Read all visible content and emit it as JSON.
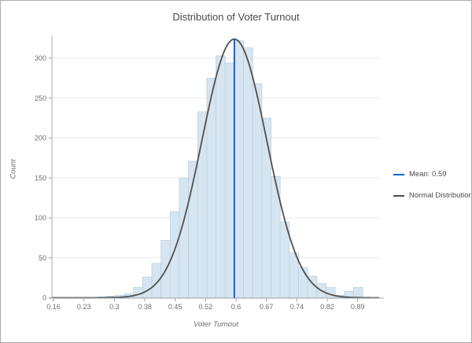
{
  "title": "Distribution of Voter Turnout",
  "chart_data": {
    "type": "bar",
    "subtype": "histogram",
    "title": "Distribution of Voter Turnout",
    "xlabel": "Voter Turnout",
    "ylabel": "Count",
    "grid": true,
    "legend_position": "right",
    "x_axis": {
      "min": 0.16,
      "max": 0.89,
      "tick_labels": [
        "0.16",
        "0.23",
        "0.3",
        "0.38",
        "0.45",
        "0.52",
        "0.6",
        "0.67",
        "0.74",
        "0.82",
        "0.89"
      ]
    },
    "y_axis": {
      "min": 0,
      "max": 328,
      "tick_values": [
        0,
        50,
        100,
        150,
        200,
        250,
        300
      ],
      "tick_labels": [
        "0",
        "50",
        "100",
        "150",
        "200",
        "250",
        "300"
      ]
    },
    "bins": {
      "start": 0.264,
      "width": 0.022
    },
    "counts": [
      1,
      2,
      3,
      5,
      13,
      26,
      43,
      72,
      108,
      150,
      171,
      233,
      275,
      303,
      294,
      322,
      313,
      268,
      225,
      152,
      95,
      56,
      38,
      27,
      18,
      13,
      3,
      8,
      13
    ],
    "normal_curve": {
      "mean": 0.594,
      "sigma": 0.078,
      "peak_count": 324,
      "color": "#4f4f4f"
    },
    "mean_line": {
      "value": 0.594,
      "label": "Mean: 0.59",
      "color": "#1563d2"
    },
    "colors": {
      "bar_fill": "#d7e5f0",
      "bar_stroke": "#b9d2e3",
      "gridline": "#e9e9e9",
      "axis": "#a6a6a6",
      "tick_text": "#6e6e6e"
    }
  },
  "legend": {
    "items": [
      {
        "label": "Mean: 0.59",
        "color": "#1563d2"
      },
      {
        "label": "Normal Distribution",
        "color": "#4f4f4f"
      }
    ]
  }
}
